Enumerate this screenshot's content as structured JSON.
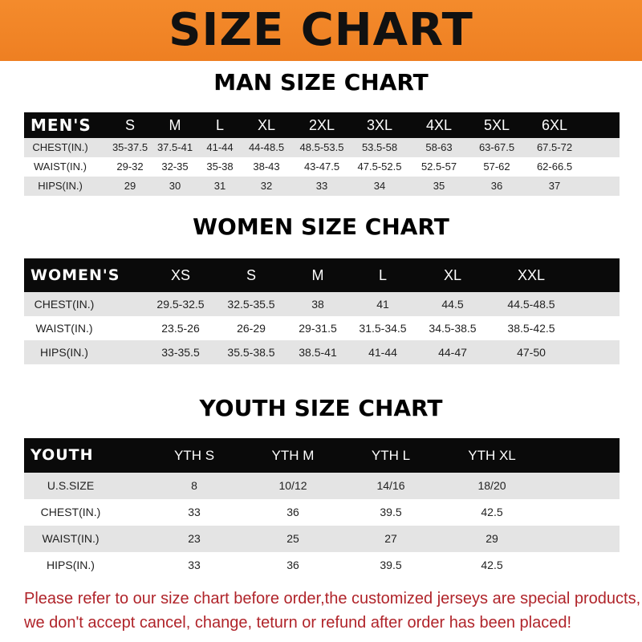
{
  "banner_title": "SIZE CHART",
  "colors": {
    "banner": "#f08428",
    "header_row": "#0a0a0a",
    "stripe": "#e4e4e4",
    "note": "#b0242a"
  },
  "men": {
    "title": "MAN SIZE CHART",
    "header": [
      "MEN'S",
      "S",
      "M",
      "L",
      "XL",
      "2XL",
      "3XL",
      "4XL",
      "5XL",
      "6XL"
    ],
    "rows": [
      [
        "CHEST(IN.)",
        "35-37.5",
        "37.5-41",
        "41-44",
        "44-48.5",
        "48.5-53.5",
        "53.5-58",
        "58-63",
        "63-67.5",
        "67.5-72"
      ],
      [
        "WAIST(IN.)",
        "29-32",
        "32-35",
        "35-38",
        "38-43",
        "43-47.5",
        "47.5-52.5",
        "52.5-57",
        "57-62",
        "62-66.5"
      ],
      [
        "HIPS(IN.)",
        "29",
        "30",
        "31",
        "32",
        "33",
        "34",
        "35",
        "36",
        "37"
      ]
    ]
  },
  "women": {
    "title": "WOMEN SIZE CHART",
    "header": [
      "WOMEN'S",
      "XS",
      "S",
      "M",
      "L",
      "XL",
      "XXL"
    ],
    "rows": [
      [
        "CHEST(IN.)",
        "29.5-32.5",
        "32.5-35.5",
        "38",
        "41",
        "44.5",
        "44.5-48.5"
      ],
      [
        "WAIST(IN.)",
        "23.5-26",
        "26-29",
        "29-31.5",
        "31.5-34.5",
        "34.5-38.5",
        "38.5-42.5"
      ],
      [
        "HIPS(IN.)",
        "33-35.5",
        "35.5-38.5",
        "38.5-41",
        "41-44",
        "44-47",
        "47-50"
      ]
    ]
  },
  "youth": {
    "title": "YOUTH SIZE CHART",
    "header": [
      "YOUTH",
      "YTH S",
      "YTH M",
      "YTH L",
      "YTH XL"
    ],
    "rows": [
      [
        "U.S.SIZE",
        "8",
        "10/12",
        "14/16",
        "18/20"
      ],
      [
        "CHEST(IN.)",
        "33",
        "36",
        "39.5",
        "42.5"
      ],
      [
        "WAIST(IN.)",
        "23",
        "25",
        "27",
        "29"
      ],
      [
        "HIPS(IN.)",
        "33",
        "36",
        "39.5",
        "42.5"
      ]
    ]
  },
  "notice": [
    "Please refer to our size chart before order,the customized jerseys are special products,",
    "we don't accept cancel, change, teturn or refund after order has been placed!"
  ]
}
